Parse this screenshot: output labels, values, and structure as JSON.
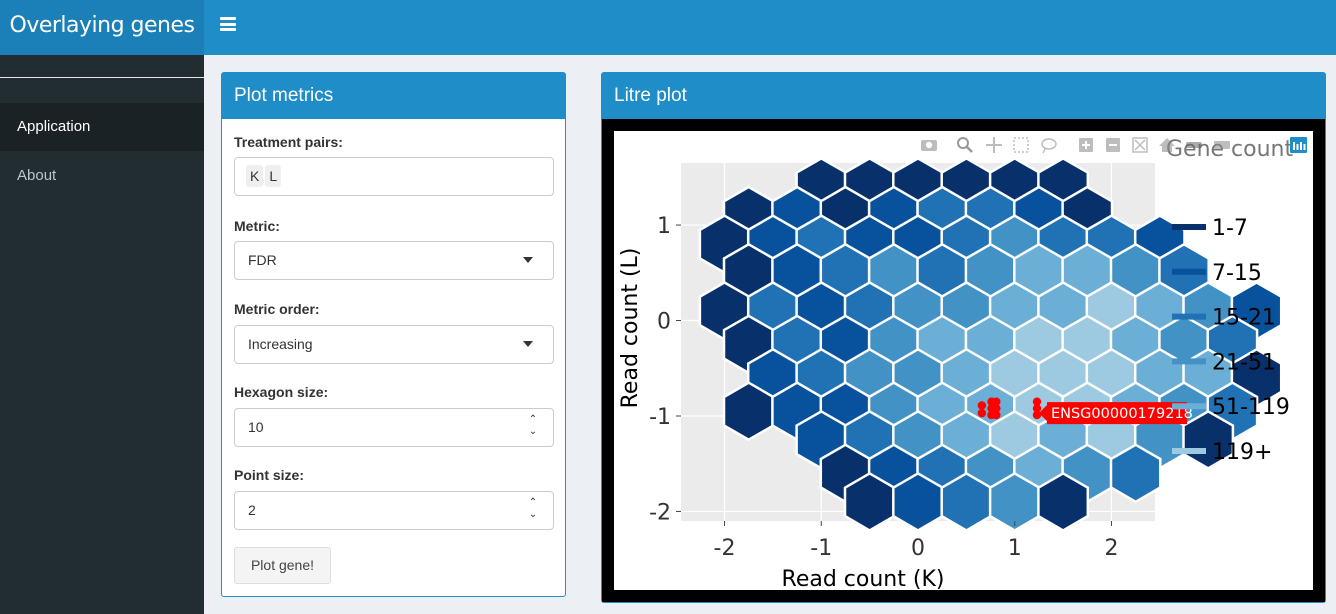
{
  "app": {
    "title": "Overlaying genes"
  },
  "sidebar": {
    "items": [
      {
        "label": "Application"
      },
      {
        "label": "About"
      }
    ]
  },
  "metrics": {
    "title": "Plot metrics",
    "treatment_pairs": {
      "label": "Treatment pairs:",
      "values": [
        "K",
        "L"
      ]
    },
    "metric": {
      "label": "Metric:",
      "value": "FDR"
    },
    "metric_order": {
      "label": "Metric order:",
      "value": "Increasing"
    },
    "hexagon_size": {
      "label": "Hexagon size:",
      "value": "10"
    },
    "point_size": {
      "label": "Point size:",
      "value": "2"
    },
    "plot_button": "Plot gene!"
  },
  "plot": {
    "title": "Litre plot",
    "modebar_icons": [
      "camera-icon",
      "zoom-icon",
      "pan-icon",
      "box-select-icon",
      "lasso-icon",
      "zoom-in-icon",
      "zoom-out-icon",
      "autoscale-icon",
      "reset-axes-icon",
      "spike-lines-icon",
      "hover-closest-icon",
      "plotly-logo-icon"
    ],
    "colors": {
      "c1": "#08306b",
      "c2": "#08519c",
      "c3": "#2171b5",
      "c4": "#4292c6",
      "c5": "#6baed6",
      "c6": "#9ecae1",
      "point": "#ff0000"
    }
  },
  "chart_data": {
    "type": "hexbin",
    "xlabel": "Read count (K)",
    "ylabel": "Read count (L)",
    "xlim": [
      -2.45,
      2.45
    ],
    "ylim": [
      -2.1,
      1.65
    ],
    "x_ticks": [
      "-2",
      "-1",
      "0",
      "1",
      "2"
    ],
    "y_ticks": [
      "1",
      "0",
      "-1",
      "-2"
    ],
    "x_tick_values": [
      -2,
      -1,
      0,
      1,
      2
    ],
    "y_tick_values": [
      1,
      0,
      -1,
      -2
    ],
    "legend": {
      "title": "Gene count",
      "entries": [
        "1-7",
        "7-15",
        "15-21",
        "21-51",
        "51-119",
        "119+"
      ]
    },
    "hex_dx": 0.5,
    "hex_dy": 0.47,
    "hex_rows": [
      {
        "y": 1.4,
        "x_start": -1.0,
        "classes": [
          1,
          1,
          1,
          1,
          1,
          1
        ]
      },
      {
        "y": 1.1,
        "x_start": -1.75,
        "classes": [
          1,
          2,
          1,
          2,
          3,
          3,
          2,
          1
        ]
      },
      {
        "y": 0.8,
        "x_start": -2.0,
        "classes": [
          1,
          2,
          3,
          2,
          2,
          3,
          4,
          3,
          3,
          2
        ]
      },
      {
        "y": 0.5,
        "x_start": -1.75,
        "classes": [
          1,
          2,
          3,
          4,
          3,
          4,
          5,
          5,
          4,
          3
        ]
      },
      {
        "y": 0.1,
        "x_start": -2.0,
        "classes": [
          1,
          3,
          2,
          3,
          4,
          4,
          5,
          5,
          6,
          5,
          4,
          2
        ]
      },
      {
        "y": -0.25,
        "x_start": -1.75,
        "classes": [
          1,
          3,
          2,
          4,
          5,
          5,
          6,
          6,
          5,
          4,
          3
        ]
      },
      {
        "y": -0.6,
        "x_start": -1.5,
        "classes": [
          2,
          3,
          4,
          4,
          5,
          6,
          6,
          6,
          5,
          5,
          1
        ]
      },
      {
        "y": -0.95,
        "x_start": -1.75,
        "classes": [
          1,
          2,
          2,
          4,
          5,
          5,
          6,
          6,
          5,
          4,
          3
        ]
      },
      {
        "y": -1.25,
        "x_start": -1.0,
        "classes": [
          2,
          3,
          4,
          5,
          6,
          5,
          6,
          4,
          1
        ]
      },
      {
        "y": -1.6,
        "x_start": -0.75,
        "classes": [
          1,
          2,
          3,
          4,
          5,
          4,
          3
        ]
      },
      {
        "y": -1.9,
        "x_start": -0.5,
        "classes": [
          1,
          2,
          3,
          4,
          1
        ]
      }
    ],
    "points": [
      {
        "x": 0.66,
        "y": -0.89
      },
      {
        "x": 0.66,
        "y": -0.97
      },
      {
        "x": 0.76,
        "y": -0.85
      },
      {
        "x": 0.76,
        "y": -0.92
      },
      {
        "x": 0.76,
        "y": -0.99
      },
      {
        "x": 0.81,
        "y": -0.85
      },
      {
        "x": 0.81,
        "y": -0.92
      },
      {
        "x": 0.81,
        "y": -0.99
      },
      {
        "x": 1.23,
        "y": -0.85
      },
      {
        "x": 1.23,
        "y": -0.92
      },
      {
        "x": 1.23,
        "y": -0.99
      }
    ],
    "annotation": {
      "text": "ENSG00000179218",
      "x": 1.23,
      "y": -0.97
    }
  }
}
